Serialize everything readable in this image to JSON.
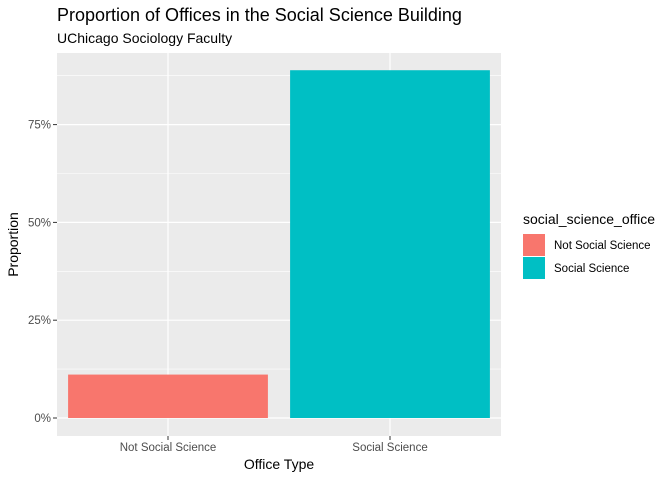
{
  "chart_data": {
    "type": "bar",
    "title": "Proportion of Offices in the Social Science Building",
    "subtitle": "UChicago Sociology Faculty",
    "xlabel": "Office Type",
    "ylabel": "Proportion",
    "categories": [
      "Not Social Science",
      "Social Science"
    ],
    "values": [
      0.111,
      0.889
    ],
    "colors": [
      "#F8766D",
      "#00BFC4"
    ],
    "ylim": [
      0,
      0.933
    ],
    "yticks": [
      0,
      0.25,
      0.5,
      0.75
    ],
    "ytick_labels": [
      "0%",
      "25%",
      "50%",
      "75%"
    ],
    "grid": true,
    "legend": {
      "title": "social_science_office",
      "placement": "right",
      "entries": [
        "Not Social Science",
        "Social Science"
      ]
    }
  }
}
